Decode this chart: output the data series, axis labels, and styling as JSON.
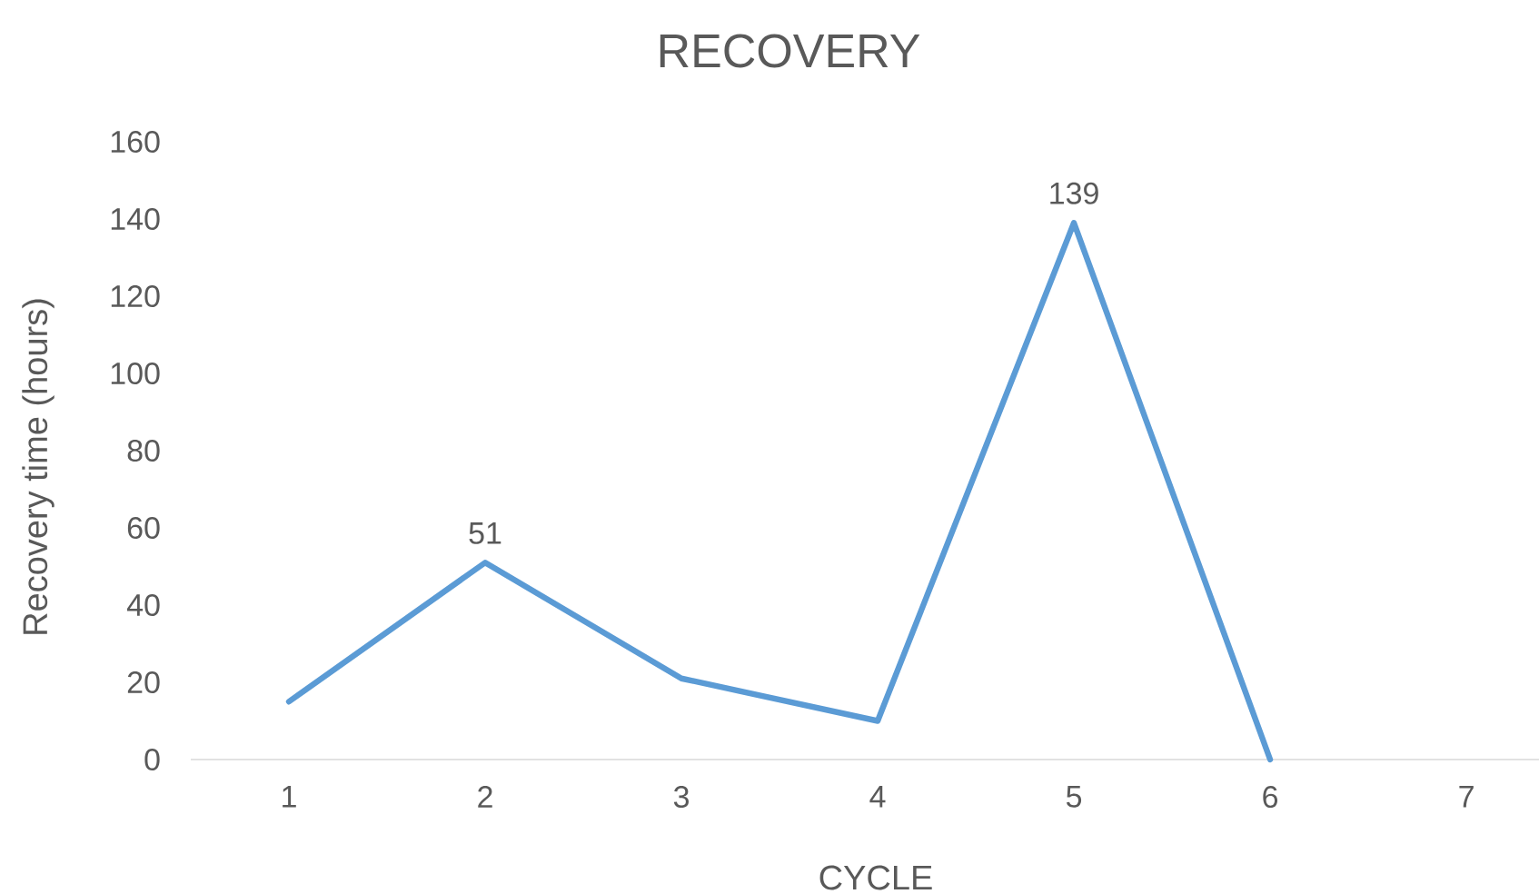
{
  "chart_data": {
    "type": "line",
    "title": "RECOVERY",
    "xlabel": "CYCLE",
    "ylabel": "Recovery time (hours)",
    "categories": [
      "1",
      "2",
      "3",
      "4",
      "5",
      "6",
      "7"
    ],
    "series": [
      {
        "color": "#5b9bd5",
        "values": [
          15,
          51,
          21,
          10,
          139,
          0,
          null
        ],
        "value_labels": [
          null,
          "51",
          null,
          null,
          "139",
          null,
          null
        ]
      }
    ],
    "ylim": [
      0,
      160
    ],
    "yticks": [
      0,
      20,
      40,
      60,
      80,
      100,
      120,
      140,
      160
    ],
    "marker": "none",
    "line_style": "solid"
  }
}
